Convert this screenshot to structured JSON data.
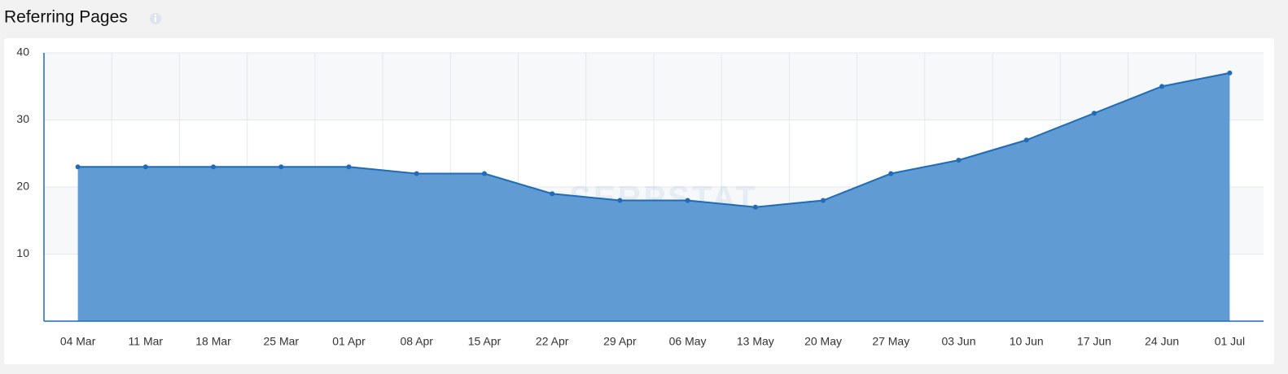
{
  "header": {
    "title": "Referring Pages"
  },
  "chart_data": {
    "type": "area",
    "watermark": "SERPSTAT",
    "categories": [
      "04 Mar",
      "11 Mar",
      "18 Mar",
      "25 Mar",
      "01 Apr",
      "08 Apr",
      "15 Apr",
      "22 Apr",
      "29 Apr",
      "06 May",
      "13 May",
      "20 May",
      "27 May",
      "03 Jun",
      "10 Jun",
      "17 Jun",
      "24 Jun",
      "01 Jul"
    ],
    "values": [
      23,
      23,
      23,
      23,
      23,
      22,
      22,
      19,
      18,
      18,
      17,
      18,
      22,
      24,
      27,
      31,
      35,
      37
    ],
    "color": "#1f6bb8",
    "fill": "#5b98d2",
    "ylim": [
      0,
      40
    ],
    "yticks": [
      10,
      20,
      30,
      40
    ],
    "grid": true
  }
}
